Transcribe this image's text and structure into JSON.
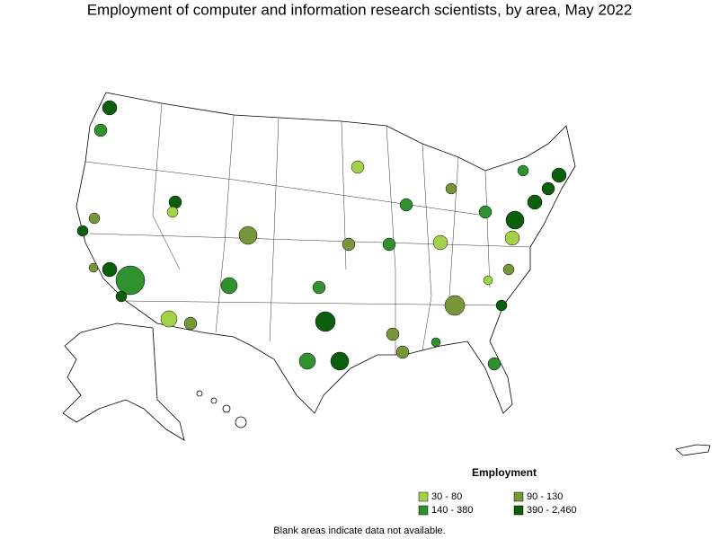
{
  "title": "Employment of computer and information research scientists, by area, May 2022",
  "legend": {
    "title": "Employment",
    "items": [
      {
        "label": "30 - 80",
        "color": "#a3d24a"
      },
      {
        "label": "90 - 130",
        "color": "#77963a"
      },
      {
        "label": "140 - 380",
        "color": "#2f922f"
      },
      {
        "label": "390 - 2,460",
        "color": "#0b5e0b"
      }
    ]
  },
  "note": "Blank areas indicate data not available."
}
